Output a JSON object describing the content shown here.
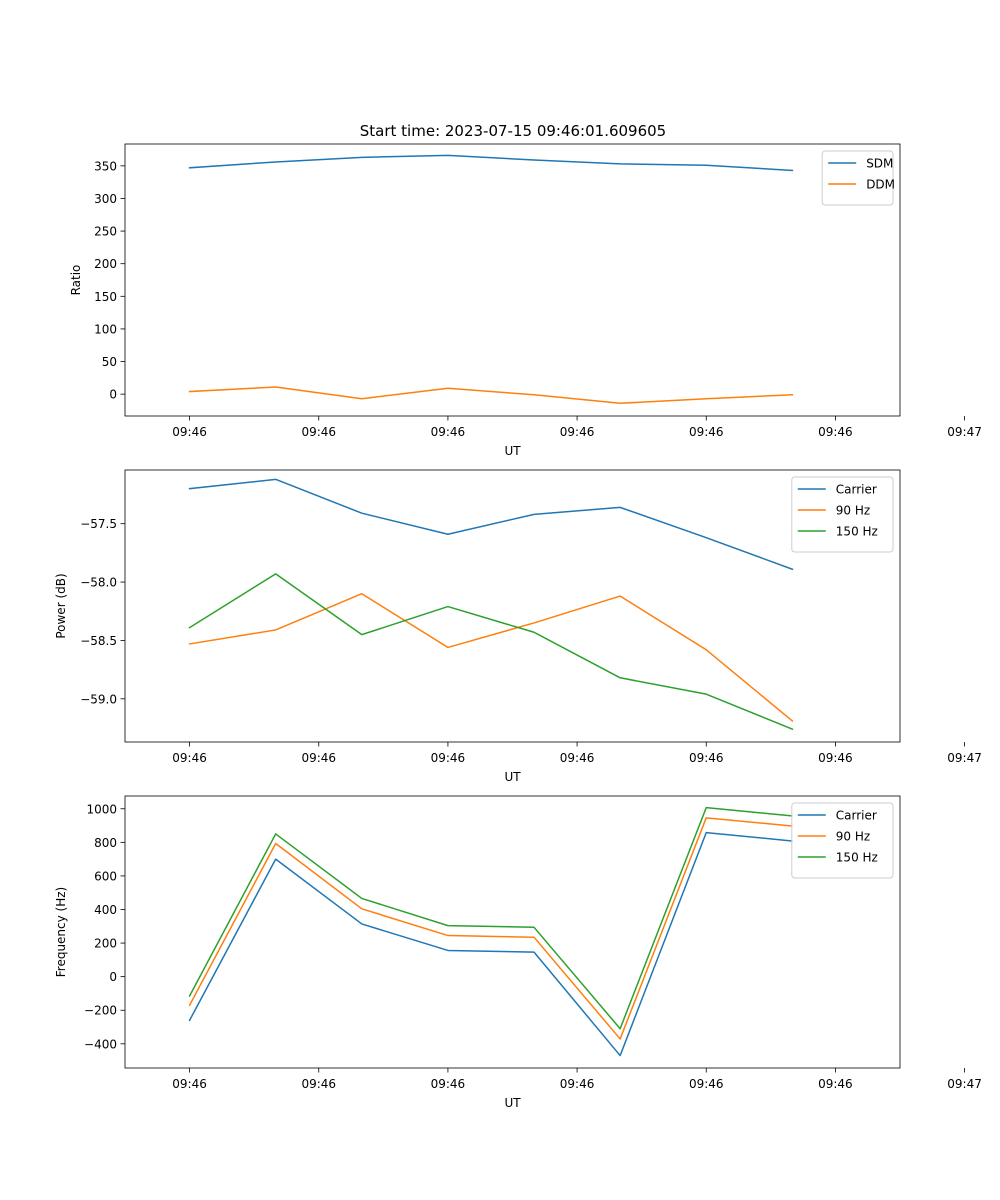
{
  "figure_title": "Start time: 2023-07-15 09:46:01.609605",
  "chart_data": [
    {
      "type": "line",
      "title": "Start time: 2023-07-15 09:46:01.609605",
      "xlabel": "UT",
      "ylabel": "Ratio",
      "x_ticks": [
        "09:46",
        "09:46",
        "09:46",
        "09:46",
        "09:46",
        "09:46",
        "09:47"
      ],
      "y_ticks": [
        0,
        50,
        100,
        150,
        200,
        250,
        300,
        350
      ],
      "x": [
        1,
        2,
        3,
        4,
        5,
        6,
        7,
        8
      ],
      "xlim": [
        0.25,
        9.25
      ],
      "ylim": [
        -33.5,
        383.5
      ],
      "legend": "top-right",
      "series": [
        {
          "name": "SDM",
          "color": "#1f77b4",
          "values": [
            347,
            356,
            363,
            366,
            359,
            353,
            351,
            343
          ]
        },
        {
          "name": "DDM",
          "color": "#ff7f0e",
          "values": [
            4,
            11,
            -7,
            9,
            -1,
            -14,
            -7,
            -1
          ]
        }
      ]
    },
    {
      "type": "line",
      "title": "",
      "xlabel": "UT",
      "ylabel": "Power (dB)",
      "x_ticks": [
        "09:46",
        "09:46",
        "09:46",
        "09:46",
        "09:46",
        "09:46",
        "09:47"
      ],
      "y_ticks": [
        -57.5,
        -58.0,
        -58.5,
        -59.0
      ],
      "x": [
        1,
        2,
        3,
        4,
        5,
        6,
        7,
        8
      ],
      "xlim": [
        0.25,
        9.25
      ],
      "ylim": [
        -59.37,
        -57.04
      ],
      "legend": "top-right",
      "series": [
        {
          "name": "Carrier",
          "color": "#1f77b4",
          "values": [
            -57.2,
            -57.12,
            -57.41,
            -57.59,
            -57.42,
            -57.36,
            -57.62,
            -57.89
          ]
        },
        {
          "name": "90 Hz",
          "color": "#ff7f0e",
          "values": [
            -58.53,
            -58.41,
            -58.1,
            -58.56,
            -58.35,
            -58.12,
            -58.58,
            -59.19
          ]
        },
        {
          "name": "150 Hz",
          "color": "#2ca02c",
          "values": [
            -58.39,
            -57.93,
            -58.45,
            -58.21,
            -58.43,
            -58.82,
            -58.96,
            -59.26
          ]
        }
      ]
    },
    {
      "type": "line",
      "title": "",
      "xlabel": "UT",
      "ylabel": "Frequency (Hz)",
      "x_ticks": [
        "09:46",
        "09:46",
        "09:46",
        "09:46",
        "09:46",
        "09:46",
        "09:47"
      ],
      "y_ticks": [
        -400,
        -200,
        0,
        200,
        400,
        600,
        800,
        1000
      ],
      "x": [
        1,
        2,
        3,
        4,
        5,
        6,
        7,
        8
      ],
      "xlim": [
        0.25,
        9.25
      ],
      "ylim": [
        -544,
        1076
      ],
      "legend": "top-right",
      "series": [
        {
          "name": "Carrier",
          "color": "#1f77b4",
          "values": [
            -260,
            700,
            314,
            156,
            146,
            -470,
            858,
            808
          ]
        },
        {
          "name": "90 Hz",
          "color": "#ff7f0e",
          "values": [
            -170,
            793,
            404,
            245,
            235,
            -371,
            946,
            897
          ]
        },
        {
          "name": "150 Hz",
          "color": "#2ca02c",
          "values": [
            -115,
            850,
            466,
            304,
            294,
            -310,
            1007,
            957
          ]
        }
      ]
    }
  ]
}
